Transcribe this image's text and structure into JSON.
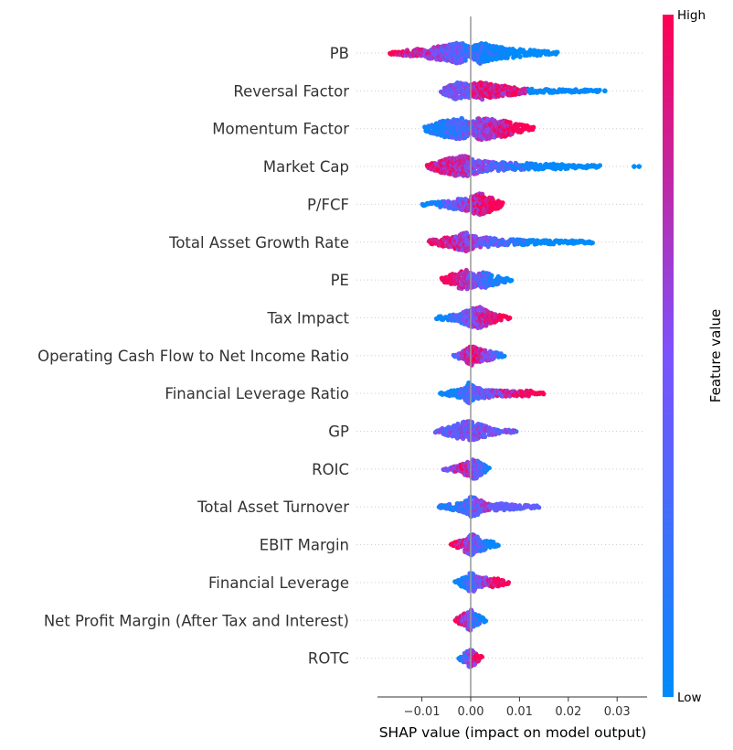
{
  "chart_data": {
    "type": "scatter",
    "subtype": "shap-beeswarm",
    "xlabel": "SHAP value (impact on model output)",
    "xlim": [
      -0.019,
      0.0365
    ],
    "xticks": [
      {
        "value": -0.01,
        "label": "−0.01"
      },
      {
        "value": 0.0,
        "label": "0.00"
      },
      {
        "value": 0.01,
        "label": "0.01"
      },
      {
        "value": 0.02,
        "label": "0.02"
      },
      {
        "value": 0.03,
        "label": "0.03"
      }
    ],
    "colorbar": {
      "title": "Feature value",
      "high_label": "High",
      "low_label": "Low",
      "high_color": "#ff0052",
      "low_color": "#008bfb"
    },
    "grid": false,
    "features": [
      {
        "name": "PB",
        "min": -0.0165,
        "max": 0.018,
        "outliers": [],
        "bulk_left": -0.006,
        "bulk_right": 0.008,
        "color_pattern": "low-right",
        "width_profile": [
          [
            -0.0165,
            0.1
          ],
          [
            -0.01,
            0.4
          ],
          [
            -0.005,
            0.7
          ],
          [
            -0.002,
            1.0
          ],
          [
            0,
            0.5
          ],
          [
            0.002,
            1.0
          ],
          [
            0.005,
            0.6
          ],
          [
            0.01,
            0.35
          ],
          [
            0.018,
            0.1
          ]
        ]
      },
      {
        "name": "Reversal Factor",
        "min": -0.006,
        "max": 0.0265,
        "outliers": [
          0.0275
        ],
        "bulk_left": -0.004,
        "bulk_right": 0.011,
        "color_pattern": "high-center-low-tail",
        "width_profile": [
          [
            -0.006,
            0.2
          ],
          [
            -0.003,
            0.8
          ],
          [
            0,
            0.6
          ],
          [
            0.002,
            0.8
          ],
          [
            0.006,
            0.5
          ],
          [
            0.012,
            0.2
          ],
          [
            0.026,
            0.1
          ]
        ]
      },
      {
        "name": "Momentum Factor",
        "min": -0.0095,
        "max": 0.013,
        "outliers": [],
        "bulk_left": -0.007,
        "bulk_right": 0.01,
        "color_pattern": "high-right",
        "width_profile": [
          [
            -0.0095,
            0.2
          ],
          [
            -0.005,
            0.8
          ],
          [
            -0.002,
            1.0
          ],
          [
            0,
            0.6
          ],
          [
            0.002,
            1.0
          ],
          [
            0.006,
            0.8
          ],
          [
            0.01,
            0.4
          ],
          [
            0.013,
            0.15
          ]
        ]
      },
      {
        "name": "Market Cap",
        "min": -0.009,
        "max": 0.0265,
        "outliers": [
          0.0335,
          0.0345
        ],
        "bulk_left": -0.006,
        "bulk_right": 0.02,
        "color_pattern": "low-right",
        "width_profile": [
          [
            -0.009,
            0.2
          ],
          [
            -0.004,
            0.8
          ],
          [
            -0.001,
            1.0
          ],
          [
            0.002,
            0.5
          ],
          [
            0.008,
            0.35
          ],
          [
            0.02,
            0.2
          ],
          [
            0.0265,
            0.1
          ]
        ]
      },
      {
        "name": "P/FCF",
        "min": -0.0098,
        "max": 0.0065,
        "outliers": [],
        "bulk_left": -0.008,
        "bulk_right": 0.006,
        "color_pattern": "high-right",
        "width_profile": [
          [
            -0.0098,
            0.1
          ],
          [
            -0.005,
            0.3
          ],
          [
            -0.001,
            0.6
          ],
          [
            0.002,
            1.0
          ],
          [
            0.005,
            0.5
          ],
          [
            0.0065,
            0.2
          ]
        ]
      },
      {
        "name": "Total Asset Growth Rate",
        "min": -0.0085,
        "max": 0.025,
        "outliers": [],
        "bulk_left": -0.006,
        "bulk_right": 0.02,
        "color_pattern": "low-right",
        "width_profile": [
          [
            -0.0085,
            0.2
          ],
          [
            -0.004,
            0.5
          ],
          [
            -0.001,
            0.9
          ],
          [
            0.001,
            0.5
          ],
          [
            0.008,
            0.25
          ],
          [
            0.02,
            0.15
          ],
          [
            0.025,
            0.1
          ]
        ]
      },
      {
        "name": "PE",
        "min": -0.006,
        "max": 0.0085,
        "outliers": [],
        "bulk_left": -0.005,
        "bulk_right": 0.007,
        "color_pattern": "high-left",
        "width_profile": [
          [
            -0.006,
            0.2
          ],
          [
            -0.003,
            0.7
          ],
          [
            -0.001,
            0.9
          ],
          [
            0.001,
            0.6
          ],
          [
            0.003,
            0.7
          ],
          [
            0.006,
            0.3
          ],
          [
            0.0085,
            0.1
          ]
        ]
      },
      {
        "name": "Tax Impact",
        "min": -0.007,
        "max": 0.008,
        "outliers": [],
        "bulk_left": -0.005,
        "bulk_right": 0.007,
        "color_pattern": "high-right",
        "width_profile": [
          [
            -0.007,
            0.1
          ],
          [
            -0.003,
            0.3
          ],
          [
            0,
            0.8
          ],
          [
            0.002,
            1.0
          ],
          [
            0.004,
            0.5
          ],
          [
            0.008,
            0.1
          ]
        ]
      },
      {
        "name": "Operating Cash Flow to Net Income Ratio",
        "min": -0.0035,
        "max": 0.007,
        "outliers": [],
        "bulk_left": -0.003,
        "bulk_right": 0.006,
        "color_pattern": "high-center",
        "width_profile": [
          [
            -0.0035,
            0.1
          ],
          [
            -0.001,
            0.5
          ],
          [
            0,
            0.9
          ],
          [
            0.002,
            0.6
          ],
          [
            0.005,
            0.3
          ],
          [
            0.007,
            0.1
          ]
        ]
      },
      {
        "name": "Financial Leverage Ratio",
        "min": -0.0062,
        "max": 0.015,
        "outliers": [],
        "bulk_left": -0.005,
        "bulk_right": 0.015,
        "color_pattern": "high-right",
        "width_profile": [
          [
            -0.0062,
            0.1
          ],
          [
            -0.002,
            0.4
          ],
          [
            -0.0005,
            1.0
          ],
          [
            0.001,
            0.5
          ],
          [
            0.005,
            0.3
          ],
          [
            0.012,
            0.25
          ],
          [
            0.015,
            0.1
          ]
        ]
      },
      {
        "name": "GP",
        "min": -0.0072,
        "max": 0.0095,
        "outliers": [],
        "bulk_left": -0.006,
        "bulk_right": 0.008,
        "color_pattern": "mixed",
        "width_profile": [
          [
            -0.0072,
            0.1
          ],
          [
            -0.003,
            0.6
          ],
          [
            -0.0005,
            1.0
          ],
          [
            0.002,
            0.6
          ],
          [
            0.006,
            0.2
          ],
          [
            0.0095,
            0.1
          ]
        ]
      },
      {
        "name": "ROIC",
        "min": -0.0055,
        "max": 0.0038,
        "outliers": [],
        "bulk_left": -0.004,
        "bulk_right": 0.003,
        "color_pattern": "high-center",
        "width_profile": [
          [
            -0.0055,
            0.1
          ],
          [
            -0.002,
            0.4
          ],
          [
            0,
            0.8
          ],
          [
            0.001,
            0.9
          ],
          [
            0.003,
            0.3
          ],
          [
            0.0038,
            0.1
          ]
        ]
      },
      {
        "name": "Total Asset Turnover",
        "min": -0.0065,
        "max": 0.014,
        "outliers": [],
        "bulk_left": -0.005,
        "bulk_right": 0.012,
        "color_pattern": "mixed-right",
        "width_profile": [
          [
            -0.0065,
            0.1
          ],
          [
            -0.002,
            0.4
          ],
          [
            0,
            1.0
          ],
          [
            0.003,
            0.4
          ],
          [
            0.008,
            0.25
          ],
          [
            0.014,
            0.1
          ]
        ]
      },
      {
        "name": "EBIT Margin",
        "min": -0.004,
        "max": 0.0058,
        "outliers": [],
        "bulk_left": -0.003,
        "bulk_right": 0.005,
        "color_pattern": "high-left",
        "width_profile": [
          [
            -0.004,
            0.1
          ],
          [
            -0.002,
            0.4
          ],
          [
            0,
            1.0
          ],
          [
            0.002,
            0.6
          ],
          [
            0.0058,
            0.1
          ]
        ]
      },
      {
        "name": "Financial Leverage",
        "min": -0.0032,
        "max": 0.008,
        "outliers": [],
        "bulk_left": -0.002,
        "bulk_right": 0.007,
        "color_pattern": "high-right",
        "width_profile": [
          [
            -0.0032,
            0.1
          ],
          [
            -0.001,
            0.5
          ],
          [
            0,
            0.9
          ],
          [
            0.002,
            0.5
          ],
          [
            0.005,
            0.4
          ],
          [
            0.008,
            0.1
          ]
        ]
      },
      {
        "name": "Net Profit Margin (After Tax and Interest)",
        "min": -0.0032,
        "max": 0.0032,
        "outliers": [],
        "bulk_left": -0.0025,
        "bulk_right": 0.003,
        "color_pattern": "high-left",
        "width_profile": [
          [
            -0.0032,
            0.1
          ],
          [
            -0.001,
            0.7
          ],
          [
            0,
            1.0
          ],
          [
            0.001,
            0.6
          ],
          [
            0.0032,
            0.1
          ]
        ]
      },
      {
        "name": "ROTC",
        "min": -0.0025,
        "max": 0.0025,
        "outliers": [],
        "bulk_left": -0.002,
        "bulk_right": 0.002,
        "color_pattern": "high-right",
        "width_profile": [
          [
            -0.0025,
            0.1
          ],
          [
            -0.001,
            0.5
          ],
          [
            0,
            0.9
          ],
          [
            0.001,
            0.5
          ],
          [
            0.0025,
            0.1
          ]
        ]
      }
    ]
  }
}
